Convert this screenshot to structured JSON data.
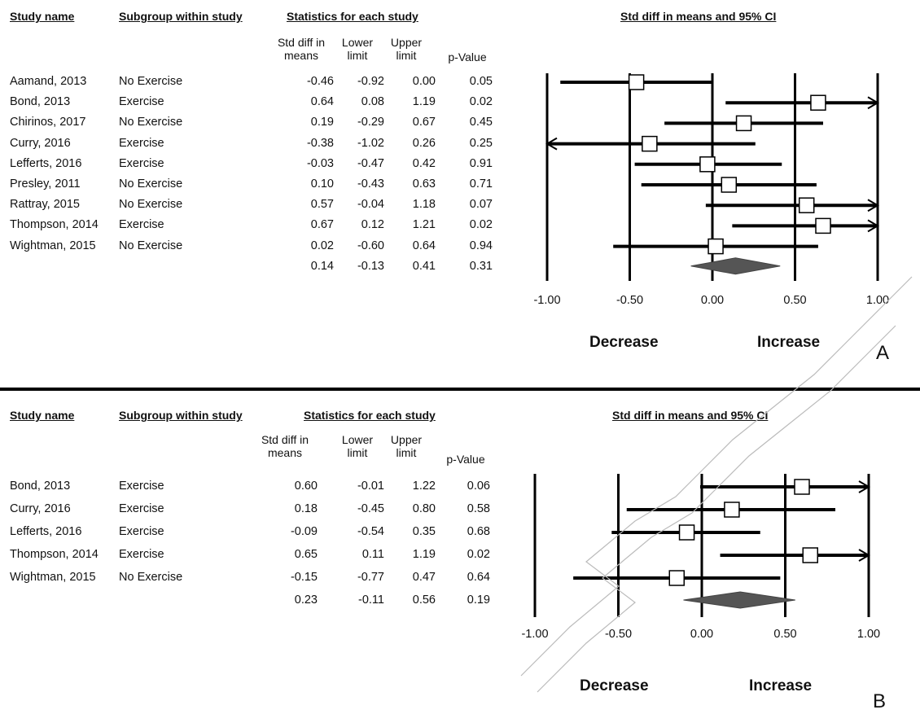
{
  "chart_data": [
    {
      "type": "forest",
      "panel_label": "A",
      "headers": {
        "study": "Study name",
        "subgroup": "Subgroup within study",
        "stats": "Statistics for each study",
        "plot": "Std diff in means and 95% CI"
      },
      "columns": [
        "Std diff in means",
        "Lower limit",
        "Upper limit",
        "p-Value"
      ],
      "studies": [
        {
          "name": "Aamand, 2013",
          "subgroup": "No Exercise",
          "smd": "-0.46",
          "lower": "-0.92",
          "upper": "0.00",
          "p": "0.05"
        },
        {
          "name": "Bond, 2013",
          "subgroup": "Exercise",
          "smd": "0.64",
          "lower": "0.08",
          "upper": "1.19",
          "p": "0.02"
        },
        {
          "name": "Chirinos, 2017",
          "subgroup": "No Exercise",
          "smd": "0.19",
          "lower": "-0.29",
          "upper": "0.67",
          "p": "0.45"
        },
        {
          "name": "Curry, 2016",
          "subgroup": "Exercise",
          "smd": "-0.38",
          "lower": "-1.02",
          "upper": "0.26",
          "p": "0.25"
        },
        {
          "name": "Lefferts, 2016",
          "subgroup": "Exercise",
          "smd": "-0.03",
          "lower": "-0.47",
          "upper": "0.42",
          "p": "0.91"
        },
        {
          "name": "Presley, 2011",
          "subgroup": "No Exercise",
          "smd": "0.10",
          "lower": "-0.43",
          "upper": "0.63",
          "p": "0.71"
        },
        {
          "name": "Rattray, 2015",
          "subgroup": "No Exercise",
          "smd": "0.57",
          "lower": "-0.04",
          "upper": "1.18",
          "p": "0.07"
        },
        {
          "name": "Thompson, 2014",
          "subgroup": "Exercise",
          "smd": "0.67",
          "lower": "0.12",
          "upper": "1.21",
          "p": "0.02"
        },
        {
          "name": "Wightman, 2015",
          "subgroup": "No Exercise",
          "smd": "0.02",
          "lower": "-0.60",
          "upper": "0.64",
          "p": "0.94"
        }
      ],
      "summary": {
        "smd": "0.14",
        "lower": "-0.13",
        "upper": "0.41",
        "p": "0.31"
      },
      "xlim": [
        -1,
        1
      ],
      "xticks": [
        "-1.00",
        "-0.50",
        "0.00",
        "0.50",
        "1.00"
      ],
      "direction_labels": [
        "Decrease",
        "Increase"
      ]
    },
    {
      "type": "forest",
      "panel_label": "B",
      "headers": {
        "study": "Study name",
        "subgroup": "Subgroup within study",
        "stats": "Statistics for each study",
        "plot": "Std diff in means and 95% CI"
      },
      "columns": [
        "Std diff in means",
        "Lower limit",
        "Upper limit",
        "p-Value"
      ],
      "studies": [
        {
          "name": "Bond, 2013",
          "subgroup": "Exercise",
          "smd": "0.60",
          "lower": "-0.01",
          "upper": "1.22",
          "p": "0.06"
        },
        {
          "name": "Curry, 2016",
          "subgroup": "Exercise",
          "smd": "0.18",
          "lower": "-0.45",
          "upper": "0.80",
          "p": "0.58"
        },
        {
          "name": "Lefferts, 2016",
          "subgroup": "Exercise",
          "smd": "-0.09",
          "lower": "-0.54",
          "upper": "0.35",
          "p": "0.68"
        },
        {
          "name": "Thompson, 2014",
          "subgroup": "Exercise",
          "smd": "0.65",
          "lower": "0.11",
          "upper": "1.19",
          "p": "0.02"
        },
        {
          "name": "Wightman, 2015",
          "subgroup": "No Exercise",
          "smd": "-0.15",
          "lower": "-0.77",
          "upper": "0.47",
          "p": "0.64"
        }
      ],
      "summary": {
        "smd": "0.23",
        "lower": "-0.11",
        "upper": "0.56",
        "p": "0.19"
      },
      "xlim": [
        -1,
        1
      ],
      "xticks": [
        "-1.00",
        "-0.50",
        "0.00",
        "0.50",
        "1.00"
      ],
      "direction_labels": [
        "Decrease",
        "Increase"
      ]
    }
  ]
}
